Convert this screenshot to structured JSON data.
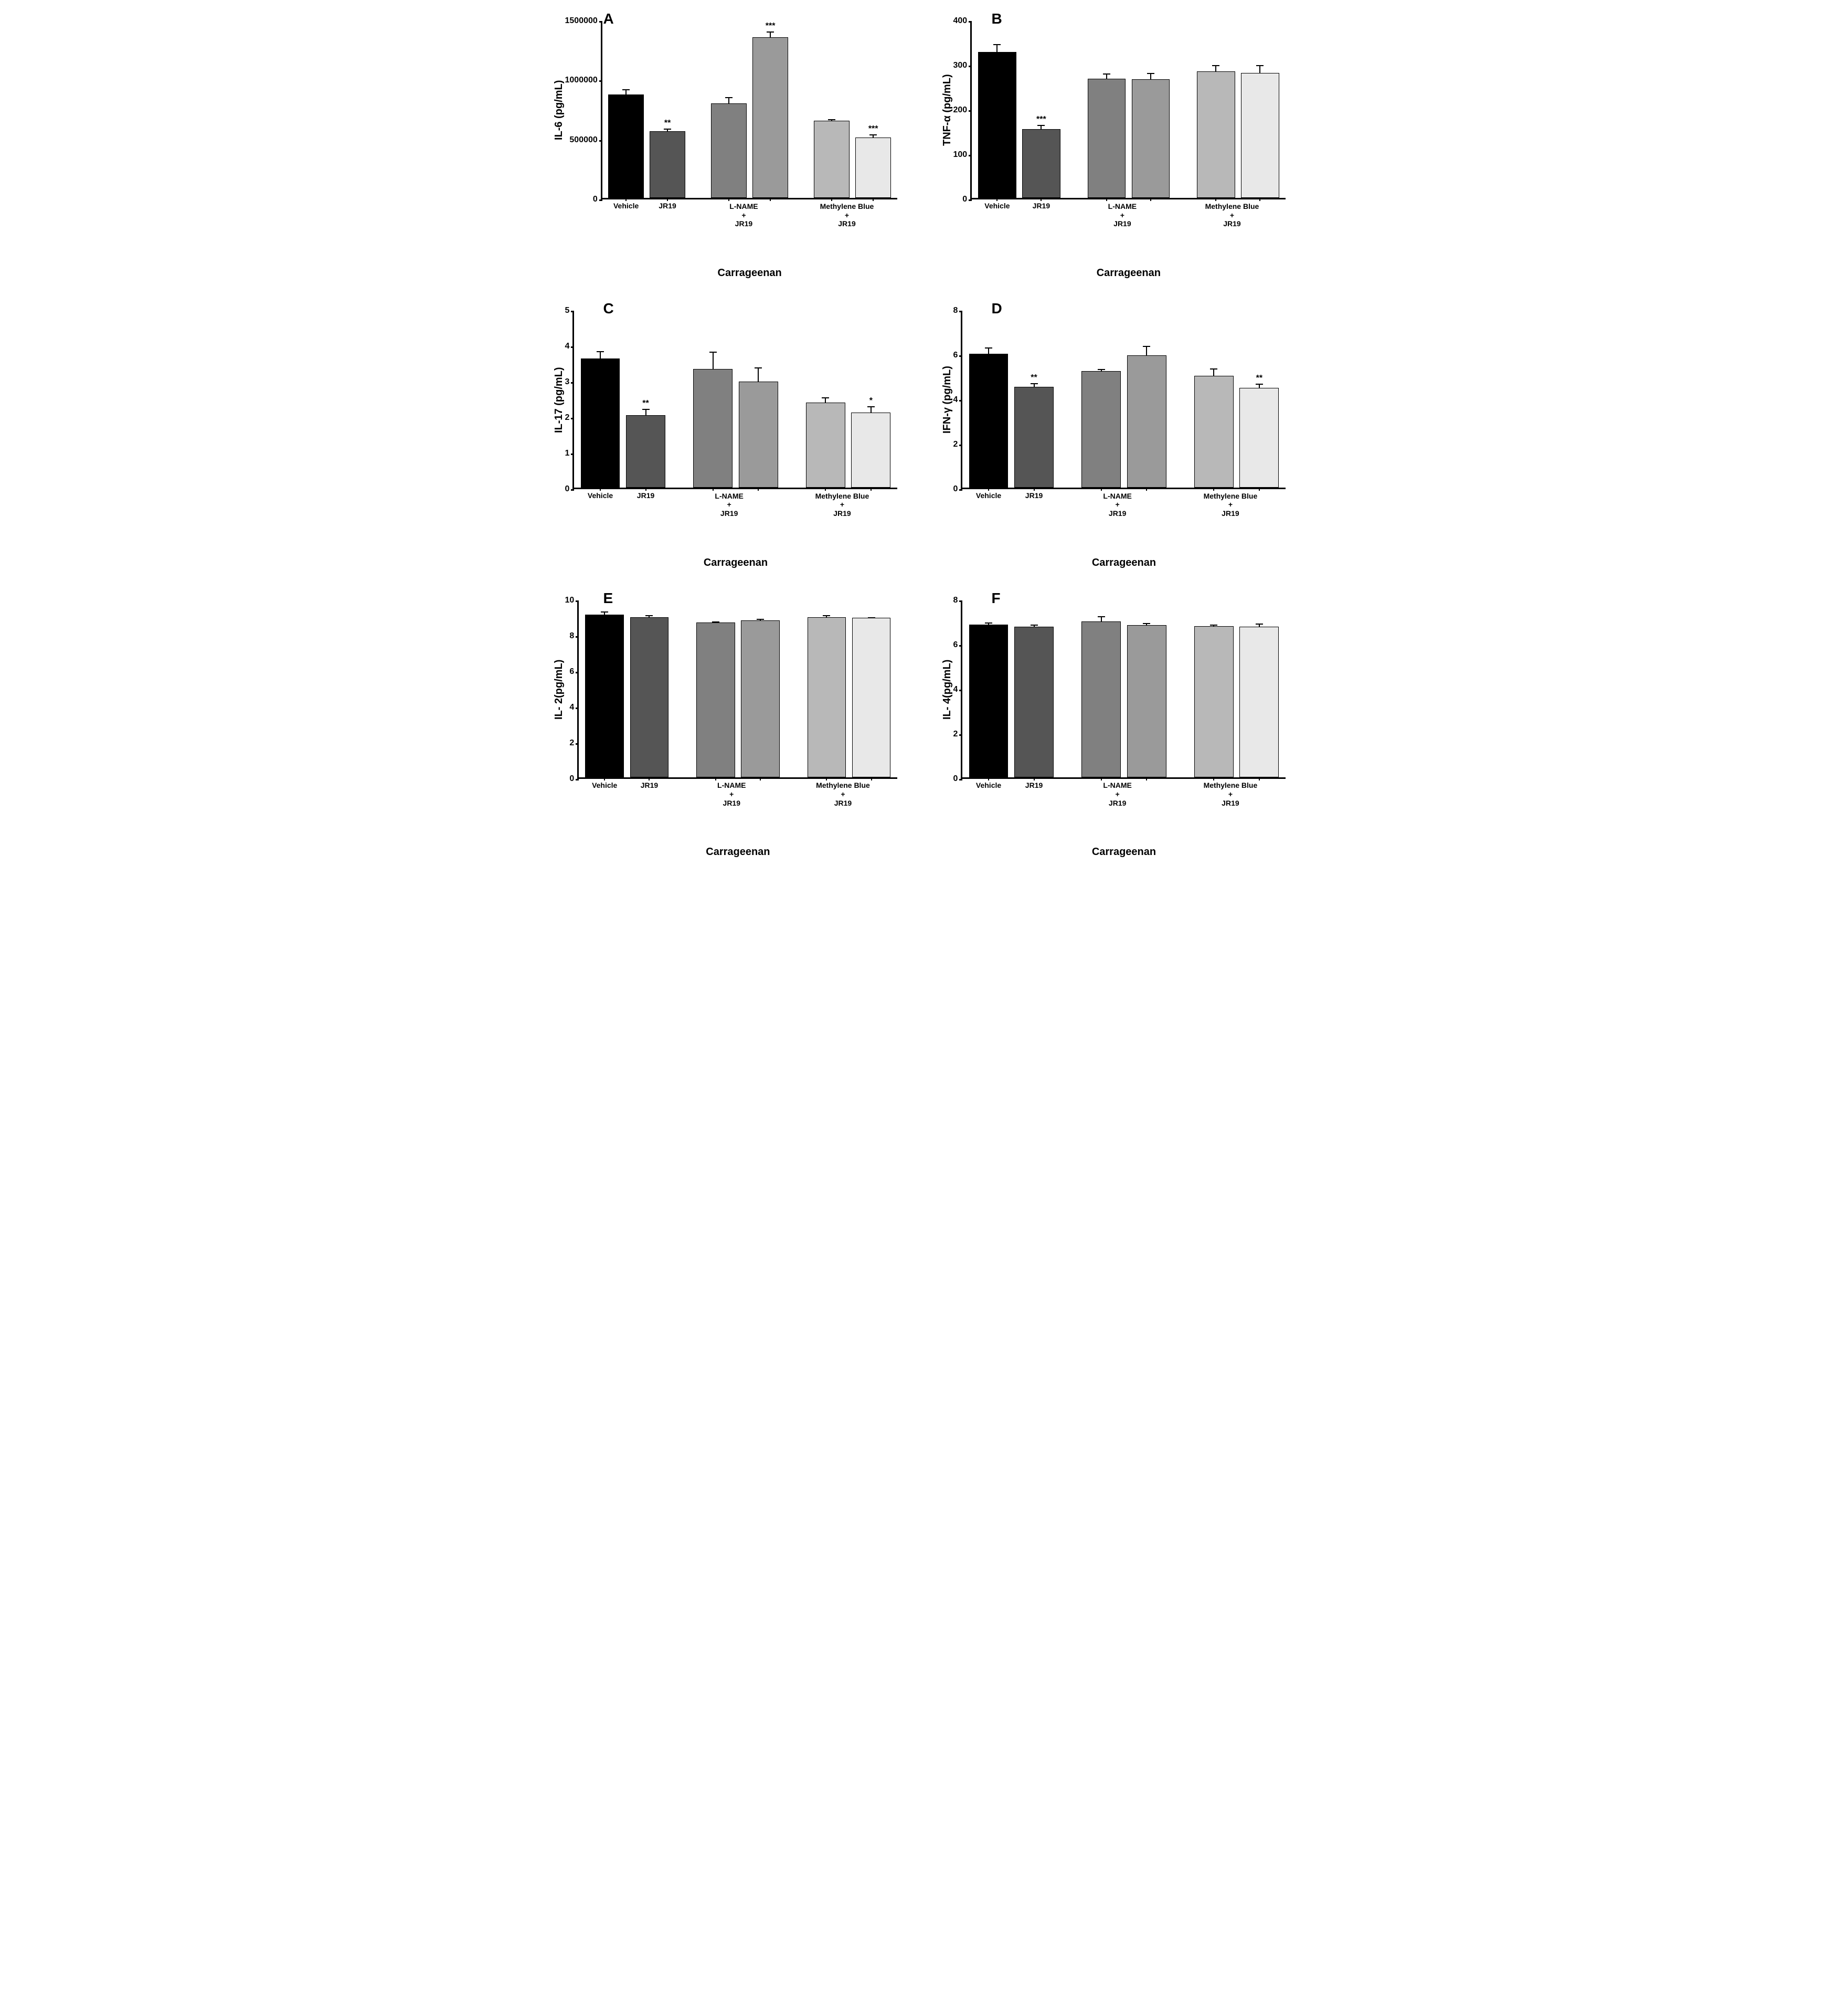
{
  "layout": {
    "cols": 2,
    "rows": 3,
    "background_color": "#ffffff"
  },
  "colors": {
    "c0": "#000000",
    "c1": "#555555",
    "c2": "#808080",
    "c3": "#9a9a9a",
    "c4": "#b8b8b8",
    "c5": "#e8e8e8",
    "axis": "#000000"
  },
  "fonts": {
    "label_weight": "bold",
    "panel_label_size": 28,
    "axis_label_size": 20,
    "tick_size": 16
  },
  "common": {
    "categories": [
      "Vehicle",
      "JR19",
      "L-NAME",
      "L-NAME+JR19",
      "Methylene Blue",
      "Methylene Blue+JR19"
    ],
    "x_single_labels": [
      "Vehicle",
      "JR19"
    ],
    "x_group_labels": [
      {
        "top": "L-NAME",
        "mid": "+",
        "bot": "JR19"
      },
      {
        "top": "Methylene Blue",
        "mid": "+",
        "bot": "JR19"
      }
    ],
    "x_axis_title": "Carrageenan",
    "bar_border": "#000000",
    "bar_width": 0.85
  },
  "panels": {
    "A": {
      "letter": "A",
      "type": "bar",
      "ylabel": "IL-6 (pg/mL)",
      "ylim": [
        0,
        1500000
      ],
      "yticks": [
        0,
        500000,
        1000000,
        1500000
      ],
      "values": [
        875000,
        565000,
        800000,
        1360000,
        655000,
        510000
      ],
      "errors": [
        45000,
        22000,
        55000,
        50000,
        15000,
        30000
      ],
      "sig": [
        "",
        "**",
        "",
        "***",
        "",
        "***"
      ]
    },
    "B": {
      "letter": "B",
      "type": "bar",
      "ylabel": "TNF-α (pg/mL)",
      "ylim": [
        0,
        400
      ],
      "yticks": [
        0,
        100,
        200,
        300,
        400
      ],
      "values": [
        330,
        155,
        270,
        268,
        286,
        282
      ],
      "errors": [
        18,
        10,
        11,
        15,
        14,
        18
      ],
      "sig": [
        "",
        "***",
        "",
        "",
        "",
        ""
      ]
    },
    "C": {
      "letter": "C",
      "type": "bar",
      "ylabel": "IL-17 (pg/mL)",
      "ylim": [
        0,
        5
      ],
      "yticks": [
        0,
        1,
        2,
        3,
        4,
        5
      ],
      "values": [
        3.65,
        2.05,
        3.35,
        3.0,
        2.4,
        2.12
      ],
      "errors": [
        0.2,
        0.18,
        0.5,
        0.4,
        0.15,
        0.18
      ],
      "sig": [
        "",
        "**",
        "",
        "",
        "",
        "*"
      ]
    },
    "D": {
      "letter": "D",
      "type": "bar",
      "ylabel": "IFN-γ (pg/mL)",
      "ylim": [
        0,
        8
      ],
      "yticks": [
        0,
        2,
        4,
        6,
        8
      ],
      "values": [
        6.05,
        4.55,
        5.27,
        5.97,
        5.05,
        4.5
      ],
      "errors": [
        0.28,
        0.18,
        0.08,
        0.45,
        0.33,
        0.2
      ],
      "sig": [
        "",
        "**",
        "",
        "",
        "",
        "**"
      ]
    },
    "E": {
      "letter": "E",
      "type": "bar",
      "ylabel": "IL- 2(pg/mL)",
      "ylim": [
        0,
        10
      ],
      "yticks": [
        0,
        2,
        4,
        6,
        8,
        10
      ],
      "values": [
        9.2,
        9.05,
        8.75,
        8.85,
        9.05,
        9.0
      ],
      "errors": [
        0.18,
        0.1,
        0.05,
        0.1,
        0.12,
        0.05
      ],
      "sig": [
        "",
        "",
        "",
        "",
        "",
        ""
      ]
    },
    "F": {
      "letter": "F",
      "type": "bar",
      "ylabel": "IL- 4(pg/mL)",
      "ylim": [
        0,
        8
      ],
      "yticks": [
        0,
        2,
        4,
        6,
        8
      ],
      "values": [
        6.9,
        6.8,
        7.05,
        6.88,
        6.82,
        6.8
      ],
      "errors": [
        0.1,
        0.1,
        0.22,
        0.08,
        0.08,
        0.15
      ],
      "sig": [
        "",
        "",
        "",
        "",
        "",
        ""
      ]
    }
  }
}
